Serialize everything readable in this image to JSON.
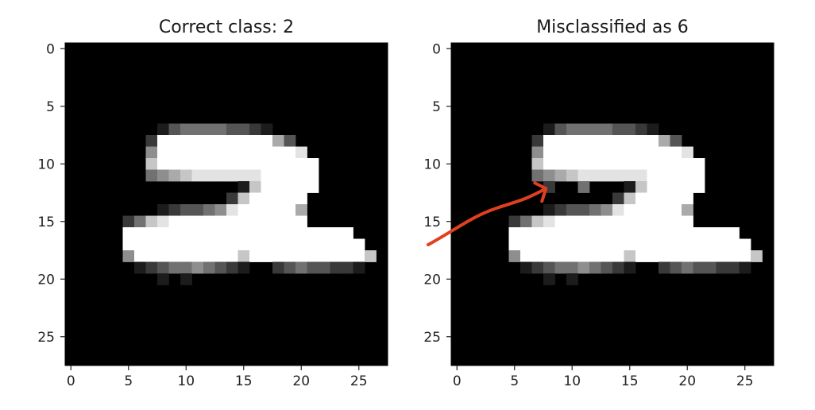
{
  "chart_data": [
    {
      "type": "heatmap",
      "title": "Correct class: 2",
      "xlabel": "",
      "ylabel": "",
      "shape": [
        28,
        28
      ],
      "colormap": "gray",
      "xticks": [
        0,
        5,
        10,
        15,
        20,
        25
      ],
      "yticks": [
        0,
        5,
        10,
        15,
        20,
        25
      ],
      "grid": false,
      "pixels": [
        "............................",
        "............................",
        "............................",
        "............................",
        "............................",
        "............................",
        "............................",
        "........1344443321..........",
        ".......2999999999963........",
        ".......59999999999998.......",
        ".......79999999999999a......",
        ".......456788888899999......",
        "...............1799999......",
        "..............2799999.......",
        "........1233458999996.......",
        ".....2478999999999999.......",
        ".....99999999999999999999...",
        ".....999999999999999999999..",
        ".....5999999999799999999997.",
        "......1234454321..23433221..",
        "........1.1.................",
        "............................",
        "............................",
        "............................",
        "............................",
        "............................",
        "............................",
        "............................"
      ]
    },
    {
      "type": "heatmap",
      "title": "Misclassified as 6",
      "xlabel": "",
      "ylabel": "",
      "shape": [
        28,
        28
      ],
      "colormap": "gray",
      "xticks": [
        0,
        5,
        10,
        15,
        20,
        25
      ],
      "yticks": [
        0,
        5,
        10,
        15,
        20,
        25
      ],
      "grid": false,
      "pixels": [
        "............................",
        "............................",
        "............................",
        "............................",
        "............................",
        "............................",
        "............................",
        "........1344443321..........",
        ".......2999999999963........",
        ".......59999999999998.......",
        ".......79999999999999a......",
        ".......456788888899999......",
        "........2..4...1799999......",
        "..............2799999.......",
        "........1233458999996.......",
        ".....2478999999999999.......",
        ".....99999999999999999999...",
        ".....999999999999999999999..",
        ".....5999999999799999999997.",
        "......1234454321..23433221..",
        "........1.1.................",
        "............................",
        "............................",
        "............................",
        "............................",
        "............................",
        "............................",
        "............................"
      ]
    }
  ],
  "annotation": {
    "type": "arrow",
    "color": "#e0401f",
    "points_to": {
      "panel": 2,
      "row": 12,
      "col": 8
    }
  }
}
